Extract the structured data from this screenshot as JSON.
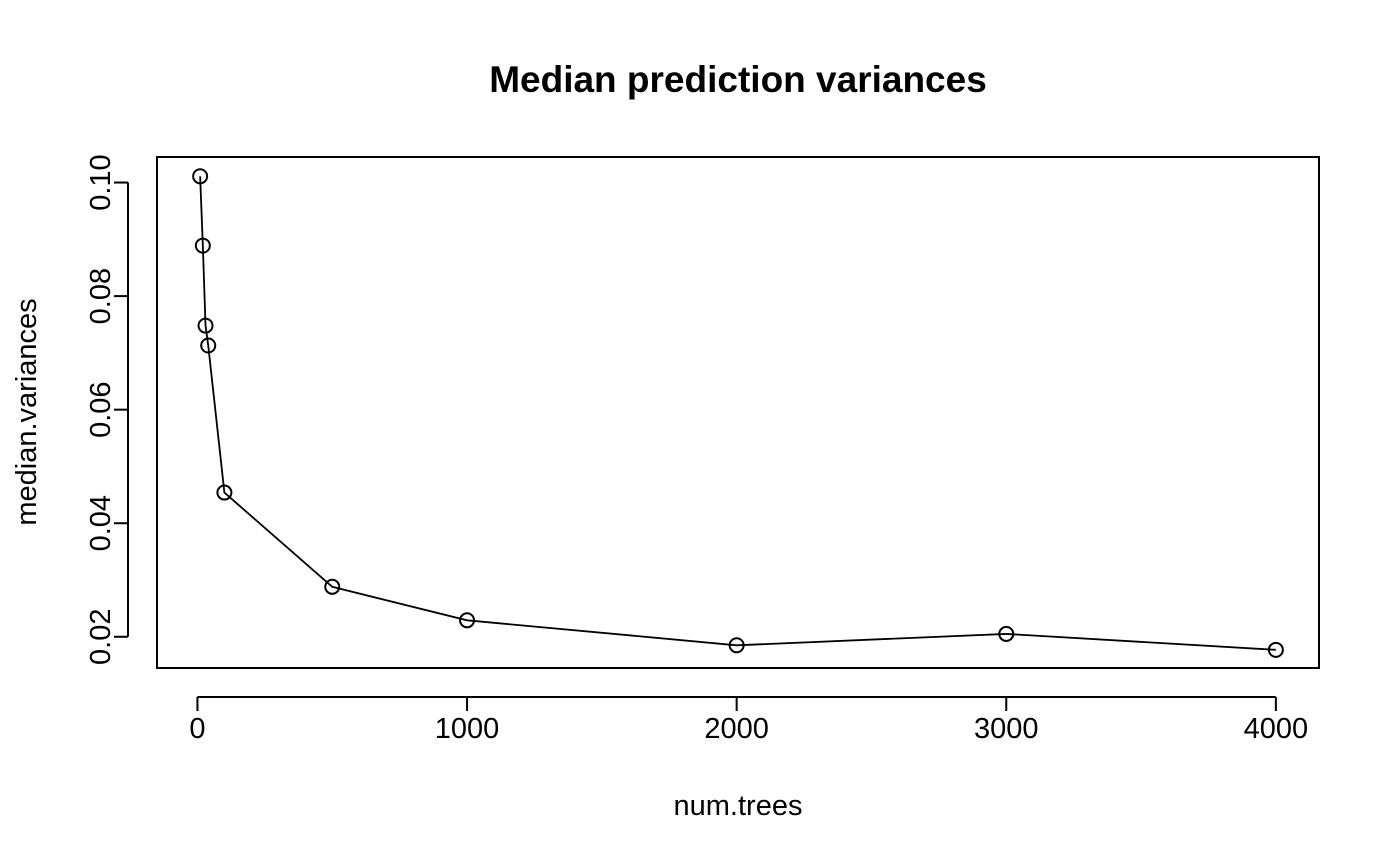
{
  "chart_data": {
    "type": "line",
    "title": "Median prediction variances",
    "xlabel": "num.trees",
    "ylabel": "median.variances",
    "x": [
      10,
      20,
      30,
      40,
      100,
      500,
      1000,
      2000,
      3000,
      4000
    ],
    "y": [
      0.1011,
      0.0889,
      0.0748,
      0.0713,
      0.0454,
      0.0288,
      0.0229,
      0.0185,
      0.0205,
      0.0177
    ],
    "xlim": [
      -150,
      4160
    ],
    "ylim": [
      0.0145,
      0.1045
    ],
    "x_ticks": [
      0,
      1000,
      2000,
      3000,
      4000
    ],
    "y_ticks": [
      0.02,
      0.04,
      0.06,
      0.08,
      0.1
    ],
    "x_tick_labels": [
      "0",
      "1000",
      "2000",
      "3000",
      "4000"
    ],
    "y_tick_labels": [
      "0.02",
      "0.04",
      "0.06",
      "0.08",
      "0.10"
    ],
    "markers": "open-circle",
    "grid": false,
    "legend": "none",
    "colors": {
      "line": "#000000",
      "background": "#ffffff"
    }
  }
}
